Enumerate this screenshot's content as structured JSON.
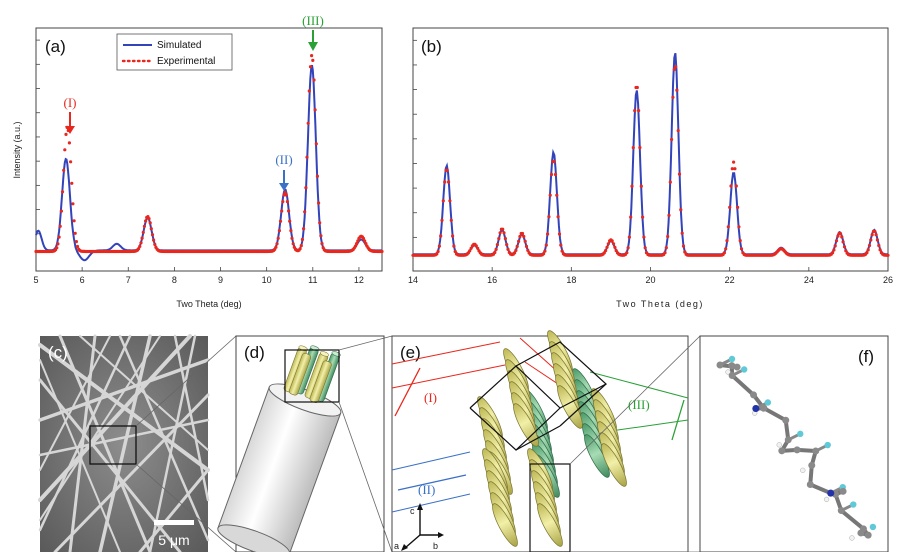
{
  "chart_data": [
    {
      "type": "line",
      "panel": "(a)",
      "xlabel": "Two Theta (deg)",
      "ylabel": "Intensity (a.u.)",
      "xlim": [
        5,
        12.5
      ],
      "ylim": [
        0,
        1
      ],
      "xticks": [
        "5",
        "6",
        "7",
        "8",
        "9",
        "10",
        "11",
        "12"
      ],
      "legend": {
        "placement": "top-left",
        "entries": [
          "Simulated",
          "Experimental"
        ]
      },
      "series": [
        {
          "name": "Simulated",
          "color": "#3344bb",
          "style": "solid",
          "peaks": [
            [
              5.65,
              0.42
            ],
            [
              6.75,
              0.03
            ],
            [
              7.42,
              0.15
            ],
            [
              10.4,
              0.28
            ],
            [
              10.98,
              0.85
            ],
            [
              12.05,
              0.05
            ]
          ]
        },
        {
          "name": "Experimental",
          "color": "#e8281e",
          "style": "dotted",
          "peaks": [
            [
              5.68,
              0.57
            ],
            [
              7.42,
              0.16
            ],
            [
              10.4,
              0.27
            ],
            [
              10.98,
              0.9
            ],
            [
              12.05,
              0.07
            ]
          ]
        }
      ],
      "annotations": [
        {
          "text": "(I)",
          "x": 5.65,
          "color": "#e8281e"
        },
        {
          "text": "(II)",
          "x": 10.4,
          "color": "#3a70c8"
        },
        {
          "text": "(III)",
          "x": 10.98,
          "color": "#2aa036"
        }
      ]
    },
    {
      "type": "line",
      "panel": "(b)",
      "xlabel": "Two Theta (deg)",
      "xlim": [
        14,
        26
      ],
      "ylim": [
        0,
        1
      ],
      "xticks": [
        "14",
        "16",
        "18",
        "20",
        "22",
        "24",
        "26"
      ],
      "series": [
        {
          "name": "Simulated",
          "color": "#3344bb",
          "style": "solid",
          "peaks": [
            [
              14.85,
              0.4
            ],
            [
              15.55,
              0.04
            ],
            [
              16.25,
              0.11
            ],
            [
              16.75,
              0.09
            ],
            [
              17.55,
              0.46
            ],
            [
              19.0,
              0.06
            ],
            [
              19.65,
              0.74
            ],
            [
              20.62,
              0.91
            ],
            [
              22.1,
              0.37
            ],
            [
              23.3,
              0.03
            ],
            [
              24.78,
              0.1
            ],
            [
              25.65,
              0.11
            ]
          ]
        },
        {
          "name": "Experimental",
          "color": "#e8281e",
          "style": "dotted",
          "peaks": [
            [
              14.85,
              0.39
            ],
            [
              15.55,
              0.05
            ],
            [
              16.25,
              0.12
            ],
            [
              16.75,
              0.1
            ],
            [
              17.55,
              0.43
            ],
            [
              19.0,
              0.07
            ],
            [
              19.65,
              0.77
            ],
            [
              20.62,
              0.86
            ],
            [
              22.1,
              0.42
            ],
            [
              23.3,
              0.03
            ],
            [
              24.78,
              0.1
            ],
            [
              25.65,
              0.11
            ]
          ]
        }
      ]
    }
  ],
  "panels_bottom": {
    "c_label": "(c)",
    "d_label": "(d)",
    "e_label": "(e)",
    "f_label": "(f)",
    "scale_bar": "5 μm",
    "e_periods": [
      "(I)",
      "(II)",
      "(III)"
    ],
    "axes_labels": {
      "c": "c",
      "a": "a",
      "b": "b"
    }
  },
  "colors": {
    "simulated": "#3344bb",
    "experimental": "#e8281e",
    "period_I": "#e8281e",
    "period_II": "#3a70c8",
    "period_III": "#2aa036",
    "yellow_rod": "#e8e48a",
    "green_rod": "#7ec496"
  }
}
